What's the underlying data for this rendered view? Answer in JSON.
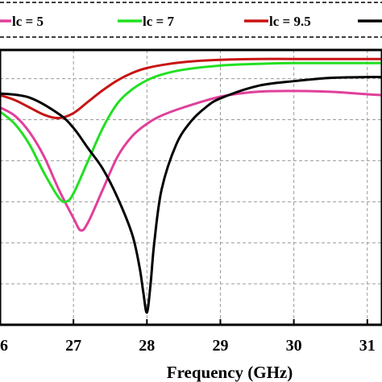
{
  "chart_data": {
    "type": "line",
    "xlabel": "Frequency (GHz)",
    "ylabel": "",
    "xlim": [
      26.0,
      31.2
    ],
    "ylim": [
      -35,
      -1.5
    ],
    "x_ticks": [
      26,
      27,
      28,
      29,
      30,
      31
    ],
    "x_tick_labels": [
      "26",
      "27",
      "28",
      "29",
      "30",
      "31"
    ],
    "y_ticks": [
      -35,
      -30,
      -25,
      -20,
      -15,
      -10,
      -5
    ],
    "grid": true,
    "legend_position": "top",
    "series": [
      {
        "name": "lc = 5",
        "color": "#e0409a",
        "x": [
          26.0,
          26.2,
          26.4,
          26.6,
          26.8,
          27.0,
          27.1,
          27.2,
          27.4,
          27.6,
          27.8,
          28.0,
          28.2,
          28.5,
          29.0,
          29.5,
          30.0,
          30.5,
          31.0,
          31.2
        ],
        "y": [
          -8.5,
          -9.5,
          -11.5,
          -14.5,
          -18.5,
          -22.0,
          -23.5,
          -22.5,
          -18.5,
          -14.5,
          -12.0,
          -10.5,
          -9.5,
          -8.5,
          -7.2,
          -6.6,
          -6.5,
          -6.6,
          -6.9,
          -7.0
        ]
      },
      {
        "name": "lc = 7",
        "color": "#22e022",
        "x": [
          26.0,
          26.2,
          26.4,
          26.6,
          26.8,
          26.9,
          27.0,
          27.2,
          27.4,
          27.6,
          27.8,
          28.0,
          28.2,
          28.5,
          29.0,
          29.5,
          30.0,
          31.0,
          31.2
        ],
        "y": [
          -9.0,
          -10.5,
          -13.0,
          -16.5,
          -19.5,
          -20.0,
          -19.0,
          -15.0,
          -11.0,
          -8.0,
          -6.3,
          -5.2,
          -4.5,
          -3.9,
          -3.4,
          -3.2,
          -3.1,
          -3.1,
          -3.1
        ]
      },
      {
        "name": "lc = 9.5",
        "color": "#c81414",
        "x": [
          26.0,
          26.2,
          26.4,
          26.6,
          26.8,
          27.0,
          27.2,
          27.4,
          27.6,
          27.8,
          28.0,
          28.3,
          28.6,
          29.0,
          29.5,
          30.0,
          30.5,
          31.0,
          31.2
        ],
        "y": [
          -7.0,
          -7.6,
          -8.5,
          -9.4,
          -9.8,
          -9.2,
          -7.8,
          -6.4,
          -5.2,
          -4.3,
          -3.7,
          -3.2,
          -2.9,
          -2.7,
          -2.6,
          -2.6,
          -2.6,
          -2.6,
          -2.6
        ]
      },
      {
        "name": "",
        "color": "#000000",
        "x": [
          26.0,
          26.4,
          26.8,
          27.0,
          27.2,
          27.4,
          27.6,
          27.8,
          27.9,
          27.95,
          28.0,
          28.05,
          28.1,
          28.2,
          28.4,
          28.6,
          28.8,
          29.0,
          29.5,
          30.0,
          30.5,
          31.0,
          31.2
        ],
        "y": [
          -6.8,
          -7.3,
          -9.3,
          -11.0,
          -13.5,
          -16.0,
          -19.5,
          -24.0,
          -28.0,
          -31.0,
          -33.5,
          -30.0,
          -25.0,
          -18.5,
          -13.0,
          -10.2,
          -8.5,
          -7.4,
          -5.9,
          -5.3,
          -4.9,
          -4.8,
          -4.8
        ]
      }
    ]
  }
}
